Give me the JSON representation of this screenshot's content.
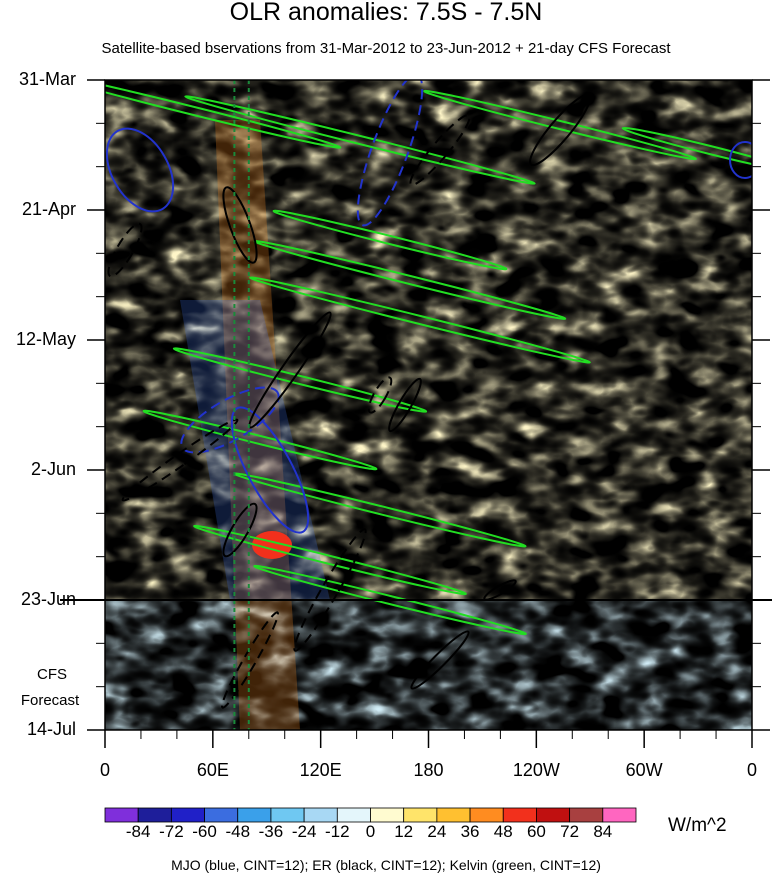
{
  "chart_data": {
    "type": "heatmap",
    "title": "OLR anomalies: 7.5S - 7.5N",
    "subtitle": "Satellite-based bservations from 31-Mar-2012 to 23-Jun-2012 + 21-day CFS Forecast",
    "x_ticks": [
      "0",
      "60E",
      "120E",
      "180",
      "120W",
      "60W",
      "0"
    ],
    "x_tick_values": [
      0,
      60,
      120,
      180,
      240,
      300,
      360
    ],
    "y_ticks": [
      "31-Mar",
      "21-Apr",
      "12-May",
      "2-Jun",
      "23-Jun",
      "14-Jul"
    ],
    "y_tick_days": [
      0,
      21,
      42,
      63,
      84,
      105
    ],
    "forecast_label": [
      "CFS",
      "Forecast"
    ],
    "observation_end_day": 84,
    "reference_longitudes": [
      72,
      80
    ],
    "colorbar": {
      "labels": [
        "-84",
        "-72",
        "-60",
        "-48",
        "-36",
        "-24",
        "-12",
        "0",
        "12",
        "24",
        "36",
        "48",
        "60",
        "72",
        "84"
      ],
      "colors": [
        "#7f2fdb",
        "#1e1e9a",
        "#2020c8",
        "#3b6de0",
        "#3aa0ea",
        "#6fc8f2",
        "#a8d8f4",
        "#e4f6fb",
        "#fffbd0",
        "#ffe46a",
        "#ffc030",
        "#ff8c20",
        "#f2301c",
        "#c01010",
        "#a84040",
        "#ff66c0"
      ],
      "units": "W/m^2"
    },
    "contour_note": "MJO (blue, CINT=12); ER (black, CINT=12); Kelvin (green, CINT=12)",
    "contour_colors": {
      "mjo": "#2233cc",
      "er": "#000000",
      "kelvin": "#22dd22"
    }
  }
}
